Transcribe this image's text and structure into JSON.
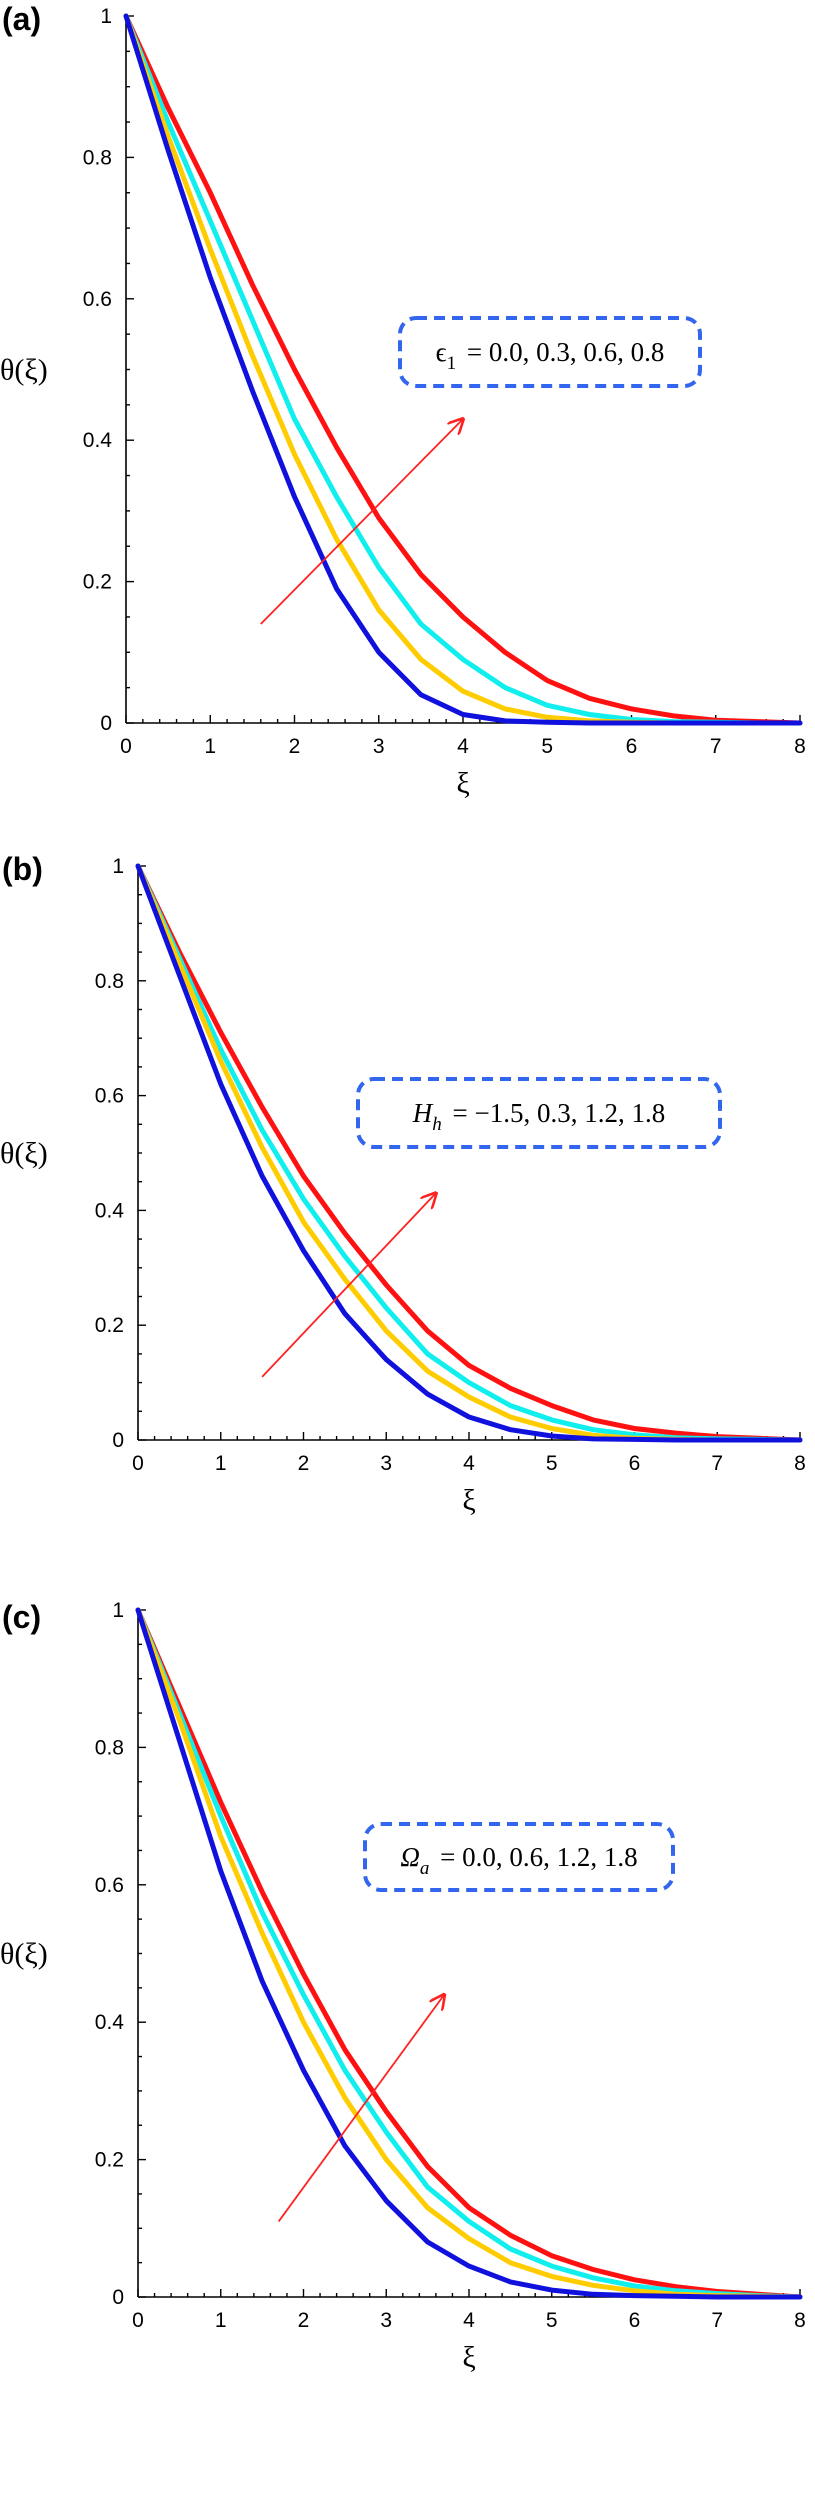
{
  "colors": {
    "series": [
      "#ff1111",
      "#11eeee",
      "#ffcc00",
      "#1111dd"
    ],
    "arrow": "#ff2222",
    "box": "#3366ee"
  },
  "chart_data": [
    {
      "type": "line",
      "panel_label": "(a)",
      "ylabel": "θ(ξ)",
      "xlabel": "ξ",
      "xlim": [
        0,
        8
      ],
      "ylim": [
        0,
        1
      ],
      "xticks": [
        0,
        1,
        2,
        3,
        4,
        5,
        6,
        7,
        8
      ],
      "yticks": [
        0,
        0.2,
        0.4,
        0.6,
        0.8,
        1
      ],
      "ytick_labels": [
        "0",
        "0.2",
        "0.4",
        "0.6",
        "0.8",
        "1"
      ],
      "grid": false,
      "annotation": {
        "symbol": "ϵ",
        "subscript": "1",
        "values": "= 0.0, 0.3, 0.6, 0.8",
        "arrow_from": [
          1.6,
          0.14
        ],
        "arrow_to": [
          4.0,
          0.43
        ]
      },
      "x": [
        0,
        0.5,
        1,
        1.5,
        2,
        2.5,
        3,
        3.5,
        4,
        4.5,
        5,
        5.5,
        6,
        6.5,
        7,
        7.5,
        8
      ],
      "series": [
        {
          "values": [
            1,
            0.87,
            0.75,
            0.62,
            0.5,
            0.39,
            0.29,
            0.21,
            0.15,
            0.1,
            0.06,
            0.035,
            0.02,
            0.01,
            0.004,
            0.002,
            0
          ]
        },
        {
          "values": [
            1,
            0.85,
            0.71,
            0.57,
            0.43,
            0.32,
            0.22,
            0.14,
            0.09,
            0.05,
            0.025,
            0.012,
            0.005,
            0.002,
            0.001,
            0,
            0
          ]
        },
        {
          "values": [
            1,
            0.83,
            0.67,
            0.52,
            0.38,
            0.26,
            0.16,
            0.09,
            0.045,
            0.02,
            0.008,
            0.003,
            0.001,
            0,
            0,
            0,
            0
          ]
        },
        {
          "values": [
            1,
            0.81,
            0.63,
            0.47,
            0.32,
            0.19,
            0.1,
            0.04,
            0.012,
            0.003,
            0.001,
            0,
            0,
            0,
            0,
            0,
            0
          ]
        }
      ]
    },
    {
      "type": "line",
      "panel_label": "(b)",
      "ylabel": "θ(ξ)",
      "xlabel": "ξ",
      "xlim": [
        0,
        8
      ],
      "ylim": [
        0,
        1
      ],
      "xticks": [
        0,
        1,
        2,
        3,
        4,
        5,
        6,
        7,
        8
      ],
      "yticks": [
        0,
        0.2,
        0.4,
        0.6,
        0.8,
        1
      ],
      "ytick_labels": [
        "0",
        "0.2",
        "0.4",
        "0.6",
        "0.8",
        "1"
      ],
      "grid": false,
      "annotation": {
        "symbol": "H",
        "subscript": "h",
        "values": "= −1.5, 0.3, 1.2, 1.8",
        "arrow_from": [
          1.5,
          0.11
        ],
        "arrow_to": [
          3.6,
          0.43
        ]
      },
      "x": [
        0,
        0.5,
        1,
        1.5,
        2,
        2.5,
        3,
        3.5,
        4,
        4.5,
        5,
        5.5,
        6,
        6.5,
        7,
        7.5,
        8
      ],
      "series": [
        {
          "values": [
            1,
            0.85,
            0.71,
            0.58,
            0.46,
            0.36,
            0.27,
            0.19,
            0.13,
            0.09,
            0.06,
            0.035,
            0.02,
            0.012,
            0.006,
            0.003,
            0
          ]
        },
        {
          "values": [
            1,
            0.84,
            0.68,
            0.54,
            0.42,
            0.32,
            0.23,
            0.15,
            0.1,
            0.06,
            0.035,
            0.018,
            0.009,
            0.004,
            0.002,
            0.001,
            0
          ]
        },
        {
          "values": [
            1,
            0.83,
            0.66,
            0.51,
            0.38,
            0.28,
            0.19,
            0.12,
            0.075,
            0.04,
            0.02,
            0.008,
            0.003,
            0.001,
            0,
            0,
            0
          ]
        },
        {
          "values": [
            1,
            0.81,
            0.62,
            0.46,
            0.33,
            0.22,
            0.14,
            0.08,
            0.04,
            0.018,
            0.007,
            0.002,
            0.001,
            0,
            0,
            0,
            0
          ]
        }
      ]
    },
    {
      "type": "line",
      "panel_label": "(c)",
      "ylabel": "θ(ξ)",
      "xlabel": "ξ",
      "xlim": [
        0,
        8
      ],
      "ylim": [
        0,
        1
      ],
      "xticks": [
        0,
        1,
        2,
        3,
        4,
        5,
        6,
        7,
        8
      ],
      "yticks": [
        0,
        0.2,
        0.4,
        0.6,
        0.8,
        1
      ],
      "ytick_labels": [
        "0",
        "0.2",
        "0.4",
        "0.6",
        "0.8",
        "1"
      ],
      "grid": false,
      "annotation": {
        "symbol": "Ω",
        "subscript": "a",
        "values": "= 0.0, 0.6, 1.2, 1.8",
        "arrow_from": [
          1.7,
          0.11
        ],
        "arrow_to": [
          3.7,
          0.44
        ]
      },
      "x": [
        0,
        0.5,
        1,
        1.5,
        2,
        2.5,
        3,
        3.5,
        4,
        4.5,
        5,
        5.5,
        6,
        6.5,
        7,
        7.5,
        8
      ],
      "series": [
        {
          "values": [
            1,
            0.86,
            0.72,
            0.59,
            0.47,
            0.36,
            0.27,
            0.19,
            0.13,
            0.09,
            0.06,
            0.04,
            0.025,
            0.015,
            0.008,
            0.004,
            0
          ]
        },
        {
          "values": [
            1,
            0.85,
            0.7,
            0.56,
            0.44,
            0.33,
            0.24,
            0.16,
            0.11,
            0.07,
            0.045,
            0.028,
            0.016,
            0.009,
            0.005,
            0.002,
            0
          ]
        },
        {
          "values": [
            1,
            0.84,
            0.67,
            0.53,
            0.4,
            0.29,
            0.2,
            0.13,
            0.085,
            0.05,
            0.03,
            0.017,
            0.009,
            0.004,
            0.002,
            0.001,
            0
          ]
        },
        {
          "values": [
            1,
            0.81,
            0.62,
            0.46,
            0.33,
            0.22,
            0.14,
            0.08,
            0.045,
            0.022,
            0.01,
            0.004,
            0.002,
            0.001,
            0,
            0,
            0
          ]
        }
      ]
    }
  ]
}
